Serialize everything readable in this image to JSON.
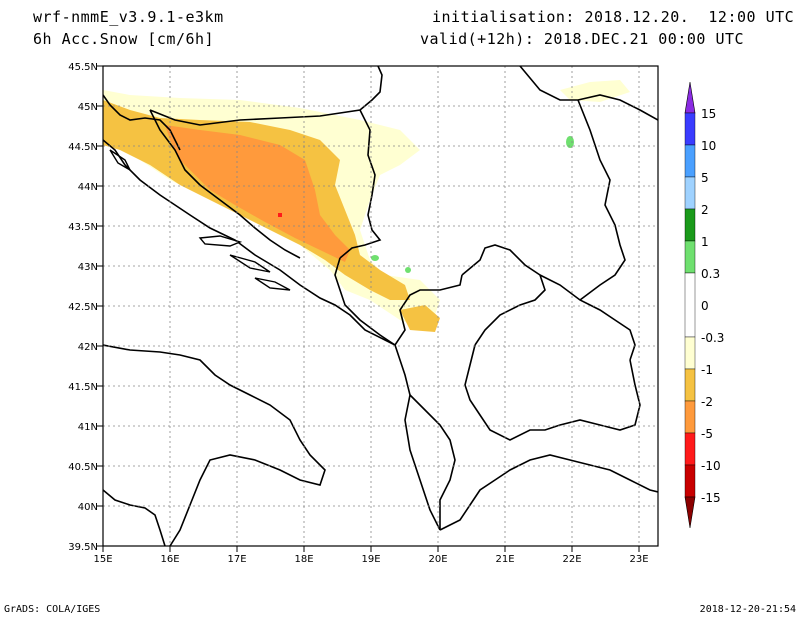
{
  "header": {
    "model": "wrf-nmmE_v3.9.1-e3km",
    "field": "6h Acc.Snow [cm/6h]",
    "initialisation": "initialisation: 2018.12.20.  12:00 UTC",
    "valid": "valid(+12h): 2018.DEC.21 00:00 UTC"
  },
  "footer": {
    "left": "GrADS: COLA/IGES",
    "right": "2018-12-20-21:54"
  },
  "axes": {
    "lat_labels": [
      "45.5N",
      "45N",
      "44.5N",
      "44N",
      "43.5N",
      "43N",
      "42.5N",
      "42N",
      "41.5N",
      "41N",
      "40.5N",
      "40N",
      "39.5N"
    ],
    "lon_labels": [
      "15E",
      "16E",
      "17E",
      "18E",
      "19E",
      "20E",
      "21E",
      "22E",
      "23E"
    ]
  },
  "colorbar": {
    "labels": [
      "15",
      "10",
      "5",
      "2",
      "1",
      "0.3",
      "0",
      "-0.3",
      "-1",
      "-2",
      "-5",
      "-10",
      "-15"
    ],
    "colors": [
      "#8a2be2",
      "#3a3cff",
      "#4aa0ff",
      "#9fd2ff",
      "#1a9a1a",
      "#6fe06f",
      "#ffffff",
      "#ffffd2",
      "#f5c242",
      "#ff9a3c",
      "#ff1a1a",
      "#c80000",
      "#8b0000"
    ]
  }
}
